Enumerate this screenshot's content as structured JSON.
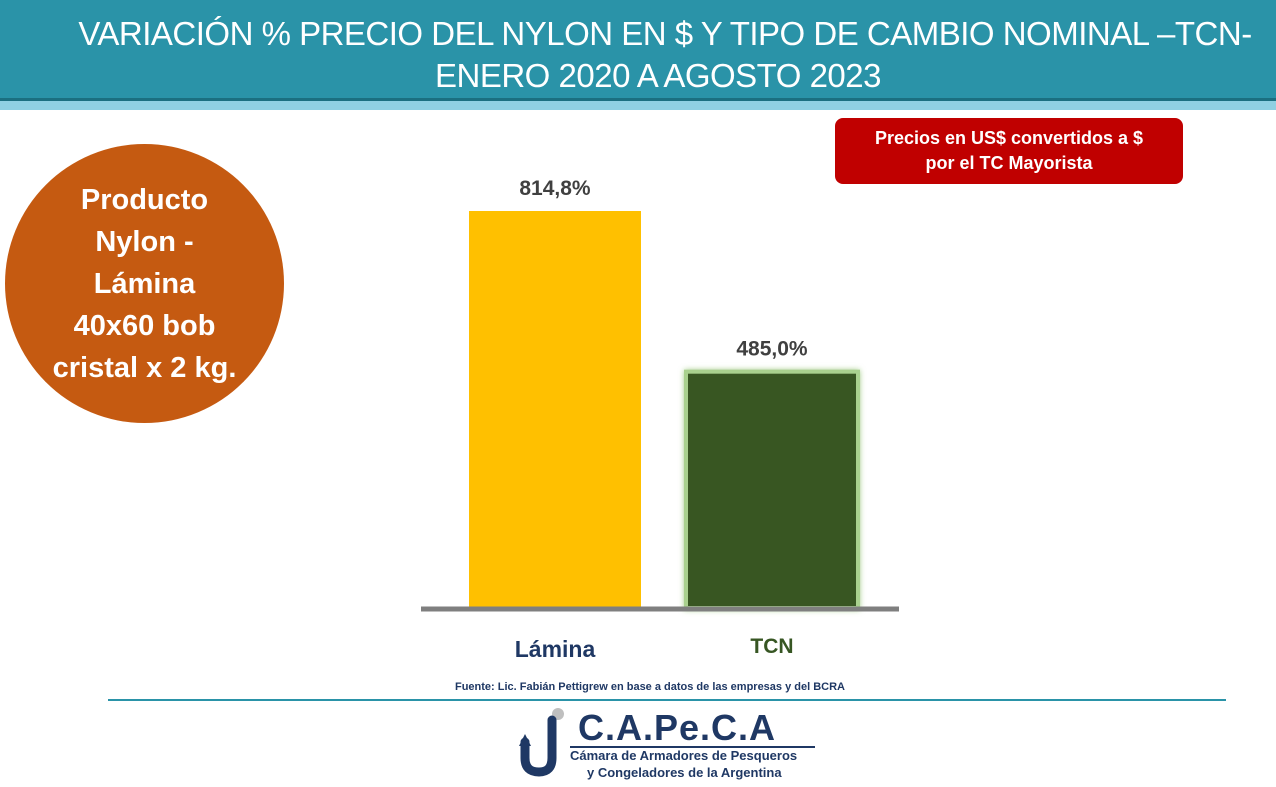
{
  "header": {
    "title_line1": "VARIACIÓN % PRECIO DEL NYLON EN $ Y TIPO DE CAMBIO NOMINAL –TCN-",
    "title_line2": "ENERO 2020 A AGOSTO 2023"
  },
  "product": {
    "lines": [
      "Producto",
      "Nylon -",
      "Lámina",
      "40x60 bob",
      "cristal x 2 kg."
    ]
  },
  "note": {
    "line1": "Precios en US$ convertidos a $",
    "line2": "por el TC Mayorista"
  },
  "chart_data": {
    "type": "bar",
    "categories": [
      "Lámina",
      "TCN"
    ],
    "values": [
      814.8,
      485.0
    ],
    "data_labels": [
      "814,8%",
      "485,0%"
    ],
    "title": "",
    "xlabel": "",
    "ylabel": "",
    "ylim": [
      0,
      900
    ],
    "grid": false,
    "legend": "none",
    "colors": [
      "#ffc000",
      "#375623"
    ],
    "category_label_colors": [
      "#1f3864",
      "#375623"
    ],
    "axis_color": "#7f7f7f",
    "highlight_color": "#a9d18e"
  },
  "footer": {
    "source": "Fuente: Lic. Fabián Pettigrew en base a datos de las empresas y del BCRA",
    "logo_name": "C.A.Pe.C.A",
    "logo_sub1": "Cámara de Armadores de Pesqueros",
    "logo_sub2": "y Congeladores de la Argentina",
    "logo_color": "#1f3864",
    "logo_icon": "fish-hook-icon"
  }
}
